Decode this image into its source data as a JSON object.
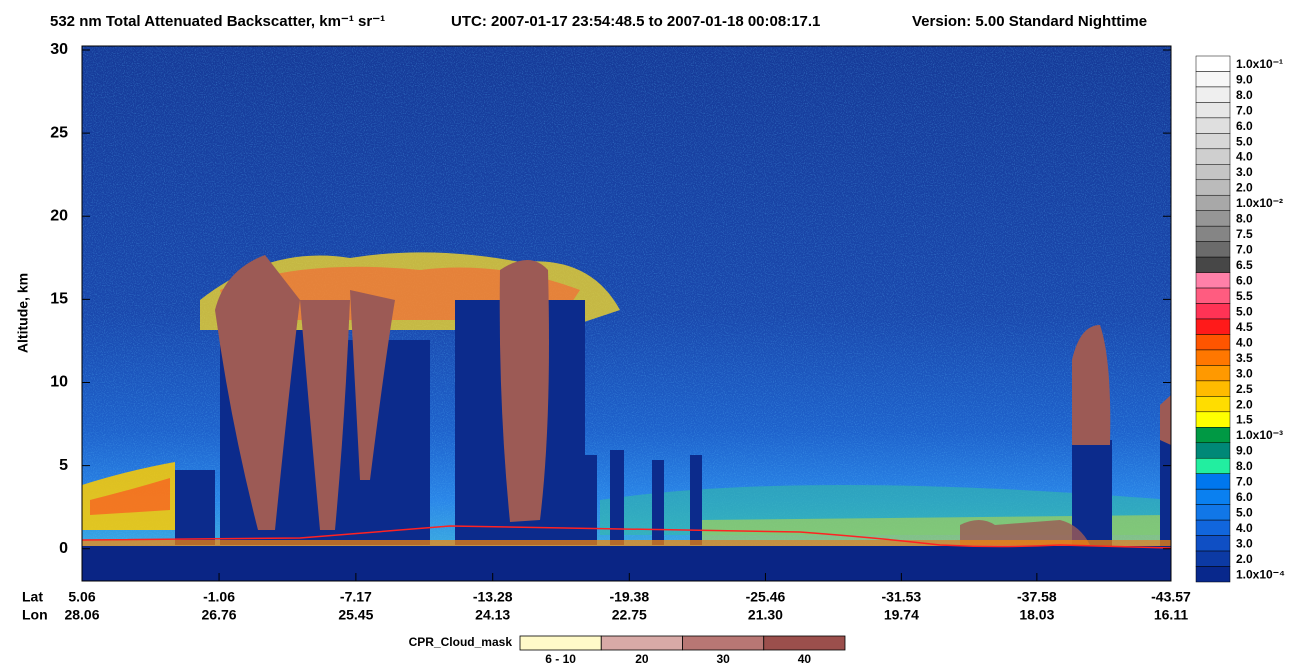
{
  "chart_data": {
    "type": "curtain",
    "title": "532 nm Total Attenuated Backscatter, km⁻¹ sr⁻¹",
    "utc": "UTC:  2007-01-17 23:54:48.5  to  2007-01-18 00:08:17.1",
    "version": "Version: 5.00  Standard  Nighttime",
    "ylabel": "Altitude, km",
    "ylim": [
      -2,
      30
    ],
    "yticks": [
      0,
      5,
      10,
      15,
      20,
      25,
      30
    ],
    "x_row_labels": [
      "Lat",
      "Lon"
    ],
    "xlim": [
      5.06,
      -43.57
    ],
    "xticks": [
      5.06,
      -1.06,
      -7.17,
      -13.28,
      -19.38,
      -25.46,
      -31.53,
      -37.58,
      -43.57
    ],
    "lon_labels": [
      "28.06",
      "26.76",
      "25.45",
      "24.13",
      "22.75",
      "21.30",
      "19.74",
      "18.03",
      "16.11"
    ],
    "colorbar": {
      "labels": [
        "1.0x10⁻¹",
        "9.0",
        "8.0",
        "7.0",
        "6.0",
        "5.0",
        "4.0",
        "3.0",
        "2.0",
        "1.0x10⁻²",
        "8.0",
        "7.5",
        "7.0",
        "6.5",
        "6.0",
        "5.5",
        "5.0",
        "4.5",
        "4.0",
        "3.5",
        "3.0",
        "2.5",
        "2.0",
        "1.5",
        "1.0x10⁻³",
        "9.0",
        "8.0",
        "7.0",
        "6.0",
        "5.0",
        "4.0",
        "3.0",
        "2.0",
        "1.0x10⁻⁴"
      ],
      "colors": [
        "#ffffff",
        "#f7f7f7",
        "#efefef",
        "#e7e7e7",
        "#dfdfdf",
        "#d7d7d7",
        "#cfcfcf",
        "#c5c5c5",
        "#bbbbbb",
        "#a8a8a8",
        "#969696",
        "#858585",
        "#6b6b6b",
        "#474747",
        "#ff80a8",
        "#ff5c80",
        "#ff3355",
        "#ff1a1a",
        "#ff5500",
        "#ff7700",
        "#ff9900",
        "#ffbb00",
        "#ffdd00",
        "#ffff00",
        "#009944",
        "#008877",
        "#22eea0",
        "#0077ee",
        "#0a80f0",
        "#1177e8",
        "#1166dd",
        "#0f4fc4",
        "#0c3aa4",
        "#08288c"
      ]
    },
    "cpr_legend": {
      "title": "CPR_Cloud_mask",
      "categories": [
        "6 - 10",
        "20",
        "30",
        "40"
      ],
      "colors": [
        "#fffac8",
        "#d8aaa7",
        "#b87774",
        "#9b4f4c"
      ]
    }
  }
}
